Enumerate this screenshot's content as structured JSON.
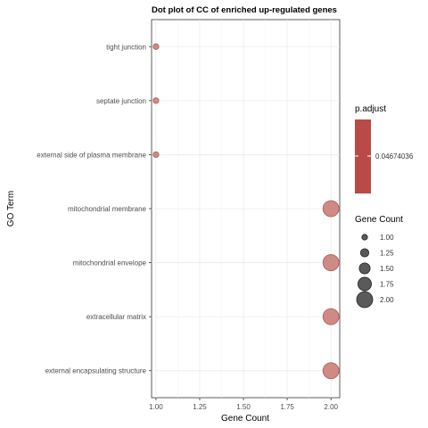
{
  "chart_data": {
    "type": "scatter",
    "title": "Dot plot of CC of enriched up-regulated genes",
    "xlabel": "Gene Count",
    "ylabel": "GO Term",
    "xlim": [
      0.975,
      2.05
    ],
    "xticks": [
      1.0,
      1.25,
      1.5,
      1.75,
      2.0
    ],
    "xtick_labels": [
      "1.00",
      "1.25",
      "1.50",
      "1.75",
      "2.00"
    ],
    "categories": [
      "tight junction",
      "septate junction",
      "external side of plasma membrane",
      "mitochondrial membrane",
      "mitochondrial envelope",
      "extracellular matrix",
      "external encapsulating structure"
    ],
    "points": [
      {
        "term": "tight junction",
        "gene_count": 1,
        "p_adjust": 0.04674036
      },
      {
        "term": "septate junction",
        "gene_count": 1,
        "p_adjust": 0.04674036
      },
      {
        "term": "external side of plasma membrane",
        "gene_count": 1,
        "p_adjust": 0.04674036
      },
      {
        "term": "mitochondrial membrane",
        "gene_count": 2,
        "p_adjust": 0.04674036
      },
      {
        "term": "mitochondrial envelope",
        "gene_count": 2,
        "p_adjust": 0.04674036
      },
      {
        "term": "extracellular matrix",
        "gene_count": 2,
        "p_adjust": 0.04674036
      },
      {
        "term": "external encapsulating structure",
        "gene_count": 2,
        "p_adjust": 0.04674036
      }
    ],
    "color_legend": {
      "title": "p.adjust",
      "label": "0.04674036",
      "color": "#b94a48"
    },
    "size_legend": {
      "title": "Gene Count",
      "values": [
        1.0,
        1.25,
        1.5,
        1.75,
        2.0
      ],
      "labels": [
        "1.00",
        "1.25",
        "1.50",
        "1.75",
        "2.00"
      ],
      "color": "#5a5a5a"
    },
    "grid": true,
    "legend_position": "right",
    "point_fill": "#d08a85",
    "point_stroke": "#a85a55"
  }
}
